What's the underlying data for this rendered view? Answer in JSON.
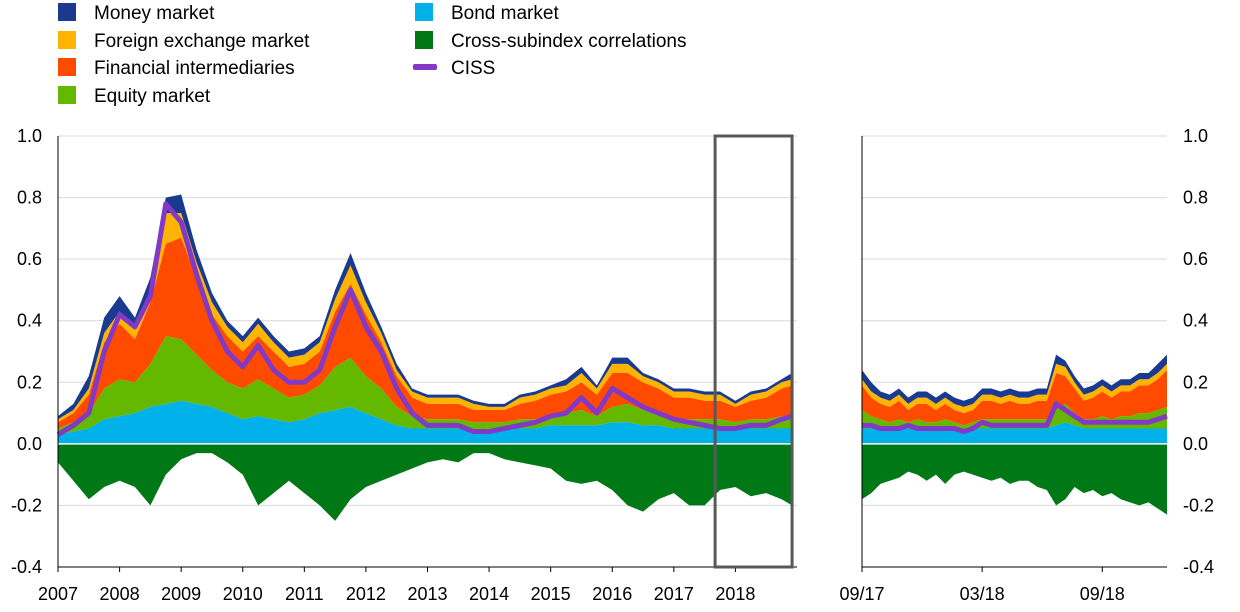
{
  "colors": {
    "money": "#1a3a8f",
    "fx": "#ffb400",
    "fin": "#ff4b00",
    "equity": "#65b800",
    "bond": "#00b1ea",
    "corr": "#007816",
    "ciss": "#8139c6",
    "grid": "#d9d9d9",
    "box": "#595959"
  },
  "legend": [
    {
      "key": "money",
      "label": "Money market",
      "kind": "square"
    },
    {
      "key": "fx",
      "label": "Foreign exchange market",
      "kind": "square"
    },
    {
      "key": "fin",
      "label": "Financial intermediaries",
      "kind": "square"
    },
    {
      "key": "equity",
      "label": "Equity market",
      "kind": "square"
    },
    {
      "key": "bond",
      "label": "Bond market",
      "kind": "square"
    },
    {
      "key": "corr",
      "label": "Cross-subindex correlations",
      "kind": "square"
    },
    {
      "key": "ciss",
      "label": "CISS",
      "kind": "line"
    }
  ],
  "chart_data": [
    {
      "type": "area",
      "panel": "long-run",
      "x_labels": [
        "2007",
        "2008",
        "2009",
        "2010",
        "2011",
        "2012",
        "2013",
        "2014",
        "2015",
        "2016",
        "2017",
        "2018"
      ],
      "ylim": [
        -0.4,
        1.0
      ],
      "y_ticks": [
        "1.0",
        "0.8",
        "0.6",
        "0.4",
        "0.2",
        "0.0",
        "-0.2",
        "-0.4"
      ],
      "y_tick_values": [
        1.0,
        0.8,
        0.6,
        0.4,
        0.2,
        0.0,
        -0.2,
        -0.4
      ],
      "highlight_box": {
        "from": 2017.67,
        "to": 2018.92
      },
      "x": [
        2007.0,
        2007.25,
        2007.5,
        2007.75,
        2008.0,
        2008.25,
        2008.5,
        2008.75,
        2009.0,
        2009.25,
        2009.5,
        2009.75,
        2010.0,
        2010.25,
        2010.5,
        2010.75,
        2011.0,
        2011.25,
        2011.5,
        2011.75,
        2012.0,
        2012.25,
        2012.5,
        2012.75,
        2013.0,
        2013.25,
        2013.5,
        2013.75,
        2014.0,
        2014.25,
        2014.5,
        2014.75,
        2015.0,
        2015.25,
        2015.5,
        2015.75,
        2016.0,
        2016.25,
        2016.5,
        2016.75,
        2017.0,
        2017.25,
        2017.5,
        2017.75,
        2018.0,
        2018.25,
        2018.5,
        2018.75,
        2018.92
      ],
      "series": [
        {
          "key": "bond",
          "values": [
            0.03,
            0.04,
            0.05,
            0.08,
            0.09,
            0.1,
            0.12,
            0.13,
            0.14,
            0.13,
            0.12,
            0.1,
            0.08,
            0.09,
            0.08,
            0.07,
            0.08,
            0.1,
            0.11,
            0.12,
            0.1,
            0.08,
            0.06,
            0.05,
            0.05,
            0.05,
            0.05,
            0.04,
            0.05,
            0.05,
            0.05,
            0.05,
            0.06,
            0.06,
            0.06,
            0.06,
            0.07,
            0.07,
            0.06,
            0.06,
            0.05,
            0.05,
            0.05,
            0.05,
            0.05,
            0.05,
            0.05,
            0.05,
            0.05
          ]
        },
        {
          "key": "equity",
          "values": [
            0.02,
            0.03,
            0.05,
            0.1,
            0.12,
            0.1,
            0.14,
            0.22,
            0.2,
            0.16,
            0.12,
            0.1,
            0.1,
            0.12,
            0.1,
            0.08,
            0.08,
            0.09,
            0.14,
            0.16,
            0.12,
            0.1,
            0.06,
            0.04,
            0.03,
            0.03,
            0.03,
            0.03,
            0.02,
            0.02,
            0.03,
            0.03,
            0.03,
            0.04,
            0.05,
            0.03,
            0.05,
            0.06,
            0.05,
            0.04,
            0.03,
            0.03,
            0.03,
            0.03,
            0.02,
            0.03,
            0.03,
            0.04,
            0.04
          ]
        },
        {
          "key": "fin",
          "values": [
            0.02,
            0.03,
            0.06,
            0.15,
            0.18,
            0.14,
            0.2,
            0.3,
            0.33,
            0.25,
            0.18,
            0.15,
            0.12,
            0.14,
            0.12,
            0.1,
            0.1,
            0.11,
            0.18,
            0.24,
            0.2,
            0.15,
            0.1,
            0.06,
            0.05,
            0.05,
            0.05,
            0.04,
            0.04,
            0.04,
            0.05,
            0.06,
            0.07,
            0.07,
            0.09,
            0.07,
            0.11,
            0.1,
            0.09,
            0.08,
            0.07,
            0.07,
            0.06,
            0.06,
            0.05,
            0.06,
            0.07,
            0.09,
            0.1
          ]
        },
        {
          "key": "fx",
          "values": [
            0.01,
            0.01,
            0.02,
            0.03,
            0.04,
            0.03,
            0.04,
            0.1,
            0.08,
            0.05,
            0.04,
            0.03,
            0.03,
            0.04,
            0.03,
            0.03,
            0.03,
            0.03,
            0.04,
            0.06,
            0.04,
            0.03,
            0.02,
            0.02,
            0.02,
            0.02,
            0.02,
            0.02,
            0.01,
            0.01,
            0.02,
            0.02,
            0.02,
            0.02,
            0.03,
            0.02,
            0.03,
            0.03,
            0.02,
            0.02,
            0.02,
            0.02,
            0.02,
            0.02,
            0.01,
            0.02,
            0.02,
            0.02,
            0.02
          ]
        },
        {
          "key": "money",
          "values": [
            0.01,
            0.02,
            0.04,
            0.05,
            0.05,
            0.04,
            0.04,
            0.05,
            0.06,
            0.04,
            0.03,
            0.02,
            0.02,
            0.02,
            0.02,
            0.02,
            0.02,
            0.02,
            0.03,
            0.04,
            0.03,
            0.02,
            0.02,
            0.01,
            0.01,
            0.01,
            0.01,
            0.01,
            0.01,
            0.01,
            0.01,
            0.01,
            0.01,
            0.02,
            0.02,
            0.01,
            0.02,
            0.02,
            0.01,
            0.01,
            0.01,
            0.01,
            0.01,
            0.01,
            0.01,
            0.01,
            0.01,
            0.01,
            0.02
          ]
        },
        {
          "key": "corr",
          "values": [
            -0.06,
            -0.12,
            -0.18,
            -0.14,
            -0.12,
            -0.14,
            -0.2,
            -0.1,
            -0.05,
            -0.03,
            -0.03,
            -0.06,
            -0.1,
            -0.2,
            -0.16,
            -0.12,
            -0.16,
            -0.2,
            -0.25,
            -0.18,
            -0.14,
            -0.12,
            -0.1,
            -0.08,
            -0.06,
            -0.05,
            -0.06,
            -0.03,
            -0.03,
            -0.05,
            -0.06,
            -0.07,
            -0.08,
            -0.12,
            -0.13,
            -0.12,
            -0.15,
            -0.2,
            -0.22,
            -0.18,
            -0.16,
            -0.2,
            -0.2,
            -0.15,
            -0.14,
            -0.17,
            -0.16,
            -0.18,
            -0.2
          ]
        },
        {
          "key": "ciss",
          "values": [
            0.03,
            0.06,
            0.1,
            0.3,
            0.42,
            0.38,
            0.48,
            0.78,
            0.72,
            0.55,
            0.4,
            0.3,
            0.25,
            0.32,
            0.24,
            0.2,
            0.2,
            0.24,
            0.38,
            0.5,
            0.38,
            0.3,
            0.18,
            0.1,
            0.06,
            0.06,
            0.06,
            0.04,
            0.04,
            0.05,
            0.06,
            0.07,
            0.09,
            0.1,
            0.15,
            0.1,
            0.18,
            0.15,
            0.12,
            0.1,
            0.08,
            0.07,
            0.06,
            0.05,
            0.05,
            0.06,
            0.06,
            0.08,
            0.09
          ]
        }
      ]
    },
    {
      "type": "area",
      "panel": "zoom",
      "x_labels": [
        "09/17",
        "03/18",
        "09/18"
      ],
      "x_label_positions": [
        0,
        26,
        52
      ],
      "ylim": [
        -0.4,
        1.0
      ],
      "y_ticks": [
        "1.0",
        "0.8",
        "0.6",
        "0.4",
        "0.2",
        "0.0",
        "-0.2",
        "-0.4"
      ],
      "y_tick_values": [
        1.0,
        0.8,
        0.6,
        0.4,
        0.2,
        0.0,
        -0.2,
        -0.4
      ],
      "x": [
        0,
        2,
        4,
        6,
        8,
        10,
        12,
        14,
        16,
        18,
        20,
        22,
        24,
        26,
        28,
        30,
        32,
        34,
        36,
        38,
        40,
        42,
        44,
        46,
        48,
        50,
        52,
        54,
        56,
        58,
        60,
        62,
        64,
        66
      ],
      "series": [
        {
          "key": "bond",
          "values": [
            0.05,
            0.05,
            0.05,
            0.05,
            0.05,
            0.05,
            0.05,
            0.05,
            0.05,
            0.05,
            0.05,
            0.04,
            0.05,
            0.05,
            0.05,
            0.05,
            0.05,
            0.05,
            0.05,
            0.05,
            0.05,
            0.06,
            0.07,
            0.06,
            0.05,
            0.05,
            0.05,
            0.05,
            0.05,
            0.05,
            0.05,
            0.05,
            0.05,
            0.05
          ]
        },
        {
          "key": "equity",
          "values": [
            0.06,
            0.04,
            0.03,
            0.02,
            0.03,
            0.02,
            0.03,
            0.02,
            0.02,
            0.03,
            0.02,
            0.02,
            0.02,
            0.03,
            0.03,
            0.03,
            0.03,
            0.03,
            0.03,
            0.03,
            0.03,
            0.05,
            0.06,
            0.04,
            0.03,
            0.03,
            0.04,
            0.03,
            0.04,
            0.04,
            0.05,
            0.05,
            0.06,
            0.07
          ]
        },
        {
          "key": "fin",
          "values": [
            0.08,
            0.06,
            0.05,
            0.05,
            0.06,
            0.04,
            0.05,
            0.06,
            0.04,
            0.05,
            0.04,
            0.04,
            0.04,
            0.06,
            0.06,
            0.05,
            0.06,
            0.05,
            0.05,
            0.06,
            0.06,
            0.12,
            0.09,
            0.08,
            0.06,
            0.07,
            0.08,
            0.07,
            0.08,
            0.08,
            0.09,
            0.09,
            0.1,
            0.12
          ]
        },
        {
          "key": "fx",
          "values": [
            0.02,
            0.02,
            0.02,
            0.02,
            0.02,
            0.02,
            0.02,
            0.02,
            0.02,
            0.02,
            0.02,
            0.02,
            0.02,
            0.02,
            0.02,
            0.02,
            0.02,
            0.02,
            0.02,
            0.02,
            0.02,
            0.03,
            0.03,
            0.02,
            0.02,
            0.02,
            0.02,
            0.02,
            0.02,
            0.02,
            0.02,
            0.02,
            0.02,
            0.02
          ]
        },
        {
          "key": "money",
          "values": [
            0.03,
            0.03,
            0.02,
            0.02,
            0.02,
            0.02,
            0.02,
            0.02,
            0.02,
            0.02,
            0.02,
            0.02,
            0.02,
            0.02,
            0.02,
            0.02,
            0.02,
            0.02,
            0.02,
            0.02,
            0.02,
            0.03,
            0.02,
            0.02,
            0.02,
            0.02,
            0.02,
            0.02,
            0.02,
            0.02,
            0.02,
            0.02,
            0.03,
            0.03
          ]
        },
        {
          "key": "corr",
          "values": [
            -0.18,
            -0.16,
            -0.13,
            -0.12,
            -0.11,
            -0.09,
            -0.1,
            -0.12,
            -0.1,
            -0.13,
            -0.1,
            -0.09,
            -0.1,
            -0.11,
            -0.12,
            -0.11,
            -0.13,
            -0.12,
            -0.12,
            -0.14,
            -0.15,
            -0.2,
            -0.18,
            -0.14,
            -0.16,
            -0.15,
            -0.17,
            -0.16,
            -0.18,
            -0.19,
            -0.2,
            -0.19,
            -0.21,
            -0.23
          ]
        },
        {
          "key": "ciss",
          "values": [
            0.06,
            0.06,
            0.05,
            0.05,
            0.05,
            0.06,
            0.05,
            0.05,
            0.05,
            0.05,
            0.05,
            0.04,
            0.05,
            0.07,
            0.06,
            0.06,
            0.06,
            0.06,
            0.06,
            0.06,
            0.06,
            0.13,
            0.11,
            0.09,
            0.07,
            0.07,
            0.07,
            0.07,
            0.07,
            0.07,
            0.07,
            0.07,
            0.08,
            0.09
          ]
        }
      ]
    }
  ]
}
